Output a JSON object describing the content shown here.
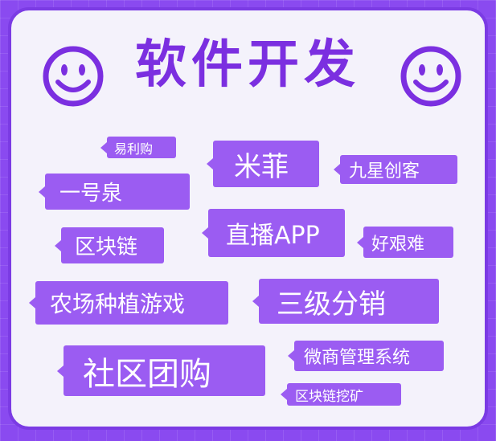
{
  "title": "软件开发",
  "colors": {
    "background": "#8a4af0",
    "card": "#f4f2fb",
    "title": "#7b2fe0",
    "tag": "#9b5cf2",
    "smiley": "#7b2fe0"
  },
  "icons": {
    "left": "smiley-face",
    "right": "smiley-face"
  },
  "tags": [
    {
      "id": "yilgou",
      "label": "易利购"
    },
    {
      "id": "mifei",
      "label": "米菲"
    },
    {
      "id": "jiuxing",
      "label": "九星创客"
    },
    {
      "id": "yihaoquan",
      "label": "一号泉"
    },
    {
      "id": "zhibo",
      "label": "直播APP"
    },
    {
      "id": "qukuailian",
      "label": "区块链"
    },
    {
      "id": "haogennan",
      "label": "好艰难"
    },
    {
      "id": "nongchang",
      "label": "农场种植游戏"
    },
    {
      "id": "sanji",
      "label": "三级分销"
    },
    {
      "id": "weishang",
      "label": "微商管理系统"
    },
    {
      "id": "shequ",
      "label": "社区团购"
    },
    {
      "id": "wakuang",
      "label": "区块链挖矿"
    }
  ]
}
